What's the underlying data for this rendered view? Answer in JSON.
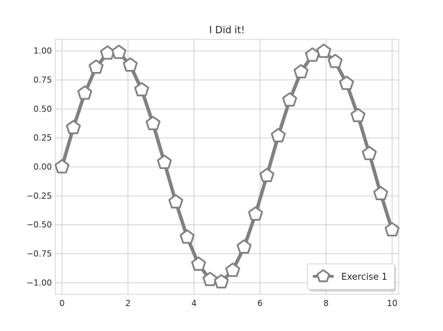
{
  "chart_data": {
    "type": "line",
    "title": "I Did it!",
    "xlabel": "",
    "ylabel": "",
    "xlim": [
      -0.2,
      10.2
    ],
    "ylim": [
      -1.1,
      1.1
    ],
    "grid": true,
    "xticks": [
      0,
      2,
      4,
      6,
      8,
      10
    ],
    "xtick_labels": [
      "0",
      "2",
      "4",
      "6",
      "8",
      "10"
    ],
    "yticks": [
      1.0,
      0.75,
      0.5,
      0.25,
      0.0,
      -0.25,
      -0.5,
      -0.75,
      -1.0
    ],
    "ytick_labels": [
      "1.00",
      "0.75",
      "0.50",
      "0.25",
      "0.00",
      "−0.25",
      "−0.50",
      "−0.75",
      "−1.00"
    ],
    "legend_position": "lower-right",
    "series": [
      {
        "name": "Exercise 1",
        "color": "#808080",
        "marker": "pentagon",
        "marker_face": "#ffffff",
        "x": [
          0.0,
          0.345,
          0.69,
          1.034,
          1.379,
          1.724,
          2.069,
          2.414,
          2.759,
          3.103,
          3.448,
          3.793,
          4.138,
          4.483,
          4.828,
          5.172,
          5.517,
          5.862,
          6.207,
          6.552,
          6.897,
          7.241,
          7.586,
          7.931,
          8.276,
          8.621,
          8.966,
          9.31,
          9.655,
          10.0
        ],
        "y": [
          0.0,
          0.338,
          0.636,
          0.86,
          0.982,
          0.988,
          0.878,
          0.665,
          0.373,
          0.038,
          -0.303,
          -0.607,
          -0.841,
          -0.973,
          -0.993,
          -0.894,
          -0.693,
          -0.408,
          -0.076,
          0.268,
          0.577,
          0.82,
          0.964,
          0.997,
          0.909,
          0.72,
          0.442,
          0.114,
          -0.232,
          -0.544
        ]
      }
    ]
  }
}
